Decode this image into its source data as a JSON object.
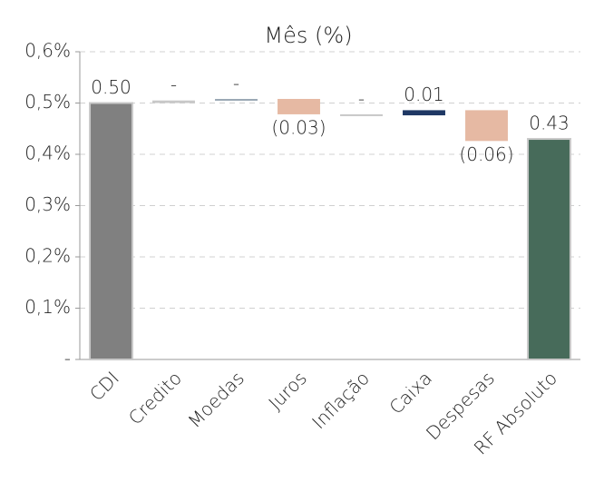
{
  "chart_data": {
    "type": "waterfall",
    "title": "Mês (%)",
    "categories": [
      "CDI",
      "Credito",
      "Moedas",
      "Juros",
      "Inflação",
      "Caixa",
      "Despesas",
      "RF Absoluto"
    ],
    "values": [
      0.5,
      0.005,
      0.003,
      -0.03,
      -0.002,
      0.01,
      -0.06,
      0.43
    ],
    "value_labels": [
      "0.50",
      "-",
      "-",
      "(0.03)",
      "-",
      "0.01",
      "(0.06)",
      "0.43"
    ],
    "measure": [
      "absolute",
      "relative",
      "relative",
      "relative",
      "relative",
      "relative",
      "relative",
      "total"
    ],
    "colors": [
      "#808080",
      "#c8c8c8",
      "#9aa8b4",
      "#e6b9a3",
      "#c8c8c8",
      "#1f3864",
      "#e6b9a3",
      "#476b5a"
    ],
    "ylim": [
      0,
      0.6
    ],
    "yticks": [
      {
        "value": 0,
        "label": "-"
      },
      {
        "value": 0.1,
        "label": "0,1%"
      },
      {
        "value": 0.2,
        "label": "0,2%"
      },
      {
        "value": 0.3,
        "label": "0,3%"
      },
      {
        "value": 0.4,
        "label": "0,4%"
      },
      {
        "value": 0.5,
        "label": "0,5%"
      },
      {
        "value": 0.6,
        "label": "0,6%"
      }
    ],
    "grid": true
  }
}
